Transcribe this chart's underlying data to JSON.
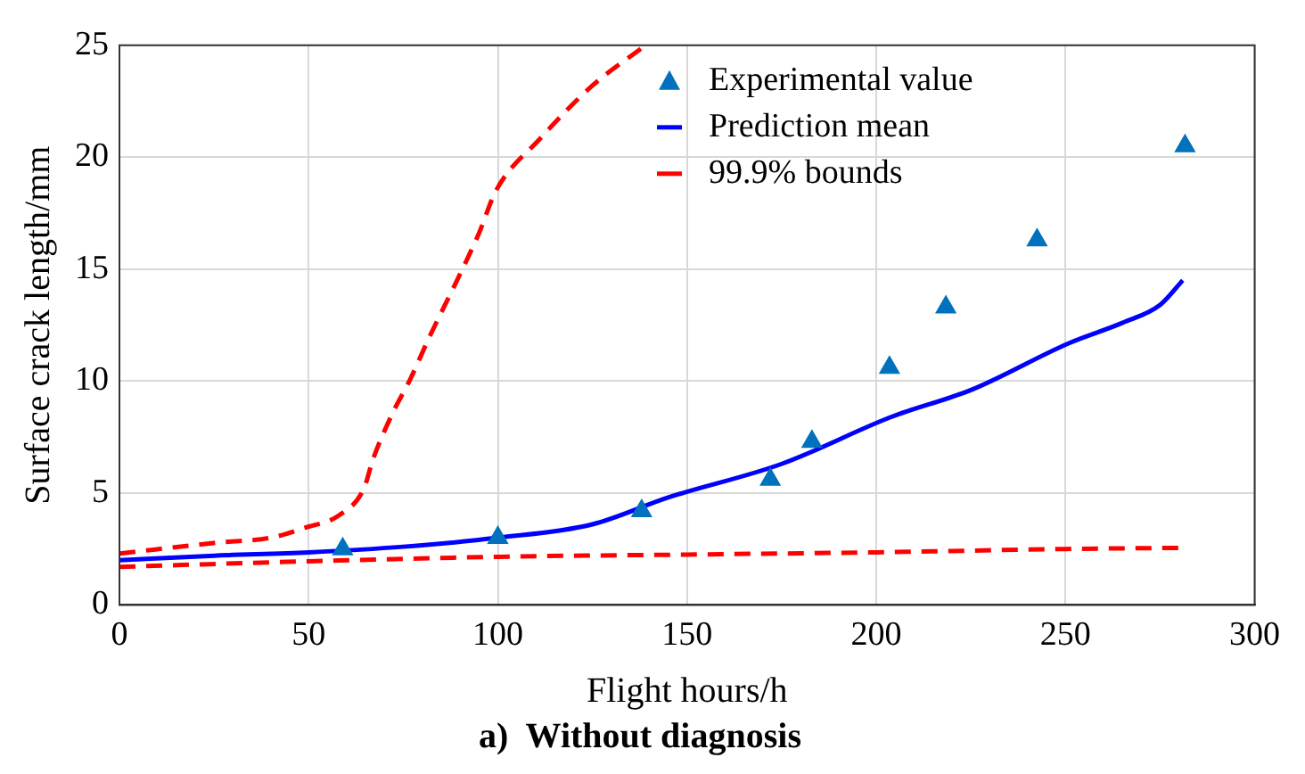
{
  "chart_data": {
    "type": "line",
    "title": "a)  Without diagnosis",
    "xlabel": "Flight hours/h",
    "ylabel": "Surface crack length/mm",
    "xlim": [
      0,
      300
    ],
    "xticks": [
      0,
      50,
      100,
      150,
      200,
      250,
      300
    ],
    "ylim": [
      0,
      25
    ],
    "yticks": [
      0,
      5,
      10,
      15,
      20,
      25
    ],
    "grid": true,
    "legend": "top right",
    "series": [
      {
        "name": "Experimental value",
        "type": "scatter",
        "marker": "triangle",
        "color": "#0072bd",
        "x": [
          59,
          100,
          138,
          172,
          183,
          203.5,
          218.4,
          242.5,
          281.6
        ],
        "values": [
          2.5,
          3.0,
          4.2,
          5.6,
          7.3,
          10.6,
          13.3,
          16.3,
          20.5
        ]
      },
      {
        "name": "Prediction mean",
        "marker": "none",
        "line_style": "solid",
        "color": "#0000ff",
        "x": [
          0,
          25,
          50,
          75,
          100,
          125,
          145,
          175,
          204,
          225,
          251,
          265,
          275,
          281
        ],
        "values": [
          2.0,
          2.2,
          2.35,
          2.6,
          3.0,
          3.6,
          4.8,
          6.3,
          8.4,
          9.6,
          11.7,
          12.6,
          13.4,
          14.5
        ]
      },
      {
        "name": "99.9% bounds",
        "marker": "none",
        "line_style": "dashed",
        "color": "#ff0000",
        "x": [
          0,
          27,
          40,
          49,
          58,
          64.6,
          67,
          72,
          76.9,
          82,
          89.5,
          95,
          99.5,
          111,
          125,
          139
        ],
        "values": [
          2.3,
          2.8,
          3.0,
          3.45,
          4.0,
          5.2,
          6.5,
          8.5,
          10.1,
          12.0,
          14.6,
          16.6,
          18.5,
          20.8,
          23.2,
          25
        ]
      },
      {
        "marker": "none",
        "line_style": "dashed",
        "color": "#ff0000",
        "x": [
          0,
          50,
          100,
          150,
          200,
          250,
          281
        ],
        "values": [
          1.7,
          1.95,
          2.15,
          2.25,
          2.35,
          2.5,
          2.55
        ]
      }
    ]
  }
}
